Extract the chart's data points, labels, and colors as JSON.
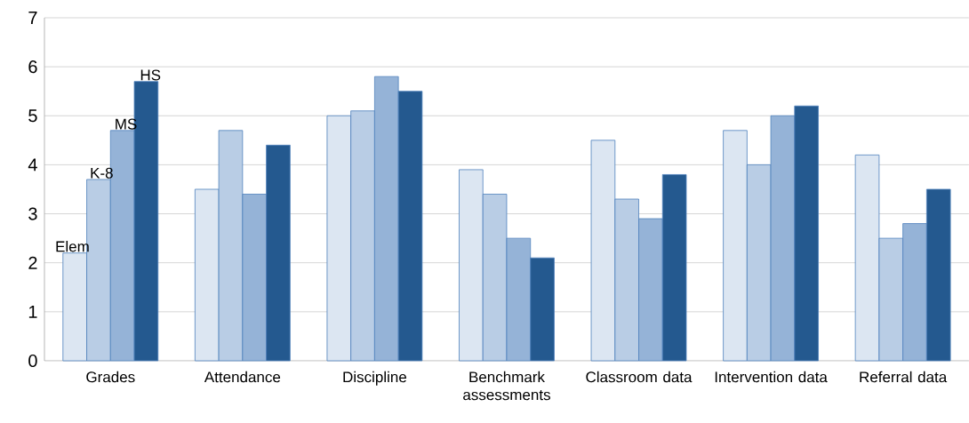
{
  "chart_data": {
    "type": "bar",
    "categories": [
      "Grades",
      "Attendance",
      "Discipline",
      "Benchmark assessments",
      "Classroom data",
      "Intervention data",
      "Referral data"
    ],
    "series": [
      {
        "name": "Elem",
        "color": "#dce6f2",
        "values": [
          2.2,
          3.5,
          5.0,
          3.9,
          4.5,
          4.7,
          4.2
        ]
      },
      {
        "name": "K-8",
        "color": "#b9cde5",
        "values": [
          3.7,
          4.7,
          5.1,
          3.4,
          3.3,
          4.0,
          2.5
        ]
      },
      {
        "name": "MS",
        "color": "#95b3d7",
        "values": [
          4.7,
          3.4,
          5.8,
          2.5,
          2.9,
          5.0,
          2.8
        ]
      },
      {
        "name": "HS",
        "color": "#24598f",
        "values": [
          5.7,
          4.4,
          5.5,
          2.1,
          3.8,
          5.2,
          3.5
        ]
      }
    ],
    "ylim": [
      0,
      7
    ],
    "yticks": [
      0,
      1,
      2,
      3,
      4,
      5,
      6,
      7
    ],
    "grid": "y",
    "legend": false
  }
}
